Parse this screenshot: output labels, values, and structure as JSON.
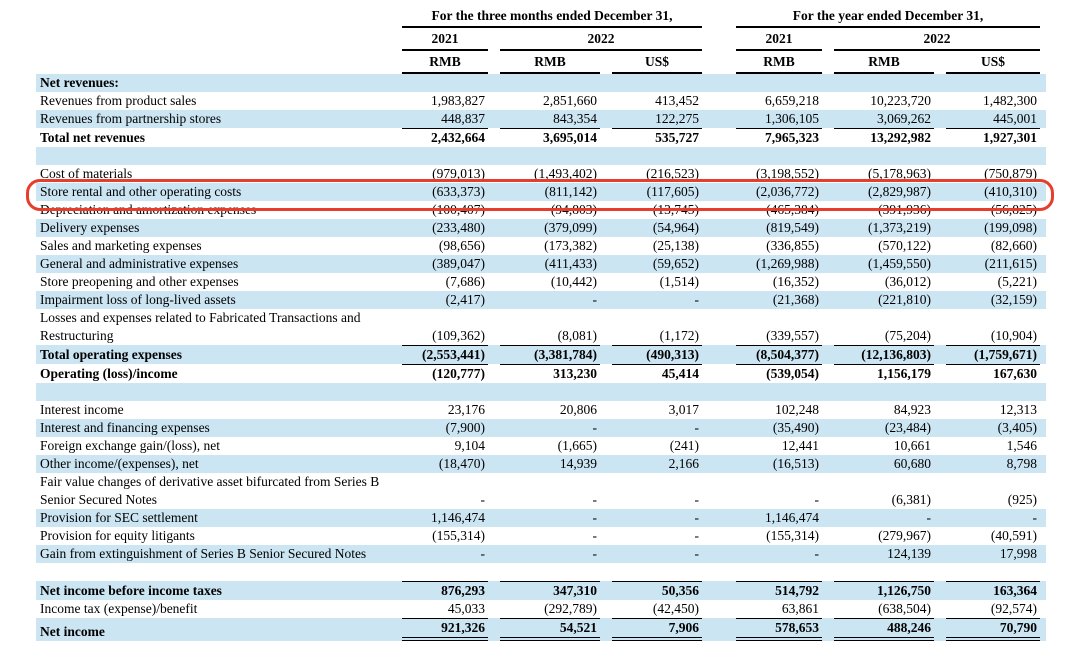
{
  "colors": {
    "stripe": "#cbe5f3",
    "highlight_ring": "#e53e2d",
    "rule": "#000000",
    "text": "#000000"
  },
  "header": {
    "groups": [
      {
        "title": "For the three months ended December 31,",
        "years": [
          {
            "label": "2021"
          },
          {
            "label": "2022"
          }
        ],
        "currencies": [
          "RMB",
          "RMB",
          "US$"
        ]
      },
      {
        "title": "For the year ended December 31,",
        "years": [
          {
            "label": "2021"
          },
          {
            "label": "2022"
          }
        ],
        "currencies": [
          "RMB",
          "RMB",
          "US$"
        ]
      }
    ]
  },
  "table": {
    "rows": [
      {
        "label": "Net revenues:",
        "bold": true,
        "values": [
          "",
          "",
          "",
          "",
          "",
          ""
        ]
      },
      {
        "label": "Revenues from product sales",
        "values": [
          "1,983,827",
          "2,851,660",
          "413,452",
          "6,659,218",
          "10,223,720",
          "1,482,300"
        ]
      },
      {
        "label": "Revenues from partnership stores",
        "values": [
          "448,837",
          "843,354",
          "122,275",
          "1,306,105",
          "3,069,262",
          "445,001"
        ]
      },
      {
        "label": "Total net revenues",
        "bold": true,
        "rule_top": true,
        "values": [
          "2,432,664",
          "3,695,014",
          "535,727",
          "7,965,323",
          "13,292,982",
          "1,927,301"
        ]
      },
      {
        "blank": true
      },
      {
        "label": "Cost of materials",
        "values": [
          "(979,013)",
          "(1,493,402)",
          "(216,523)",
          "(3,198,552)",
          "(5,178,963)",
          "(750,879)"
        ]
      },
      {
        "label": "Store rental and other operating costs",
        "highlight": true,
        "values": [
          "(633,373)",
          "(811,142)",
          "(117,605)",
          "(2,036,772)",
          "(2,829,987)",
          "(410,310)"
        ]
      },
      {
        "label": "Depreciation and amortization expenses",
        "values": [
          "(100,407)",
          "(94,803)",
          "(13,745)",
          "(465,384)",
          "(391,936)",
          "(56,825)"
        ]
      },
      {
        "label": "Delivery expenses",
        "values": [
          "(233,480)",
          "(379,099)",
          "(54,964)",
          "(819,549)",
          "(1,373,219)",
          "(199,098)"
        ]
      },
      {
        "label": "Sales and marketing expenses",
        "values": [
          "(98,656)",
          "(173,382)",
          "(25,138)",
          "(336,855)",
          "(570,122)",
          "(82,660)"
        ]
      },
      {
        "label": "General and administrative expenses",
        "values": [
          "(389,047)",
          "(411,433)",
          "(59,652)",
          "(1,269,988)",
          "(1,459,550)",
          "(211,615)"
        ]
      },
      {
        "label": "Store preopening and other expenses",
        "values": [
          "(7,686)",
          "(10,442)",
          "(1,514)",
          "(16,352)",
          "(36,012)",
          "(5,221)"
        ]
      },
      {
        "label": "Impairment loss of long-lived assets",
        "values": [
          "(2,417)",
          "-",
          "-",
          "(21,368)",
          "(221,810)",
          "(32,159)"
        ]
      },
      {
        "label": "Losses and expenses related to Fabricated Transactions and Restructuring",
        "values": [
          "(109,362)",
          "(8,081)",
          "(1,172)",
          "(339,557)",
          "(75,204)",
          "(10,904)"
        ]
      },
      {
        "label": "Total operating expenses",
        "bold": true,
        "rule_top": true,
        "values": [
          "(2,553,441)",
          "(3,381,784)",
          "(490,313)",
          "(8,504,377)",
          "(12,136,803)",
          "(1,759,671)"
        ]
      },
      {
        "label": "Operating (loss)/income",
        "bold": true,
        "rule_top": true,
        "values": [
          "(120,777)",
          "313,230",
          "45,414",
          "(539,054)",
          "1,156,179",
          "167,630"
        ]
      },
      {
        "blank": true
      },
      {
        "label": "Interest income",
        "values": [
          "23,176",
          "20,806",
          "3,017",
          "102,248",
          "84,923",
          "12,313"
        ]
      },
      {
        "label": "Interest and financing expenses",
        "values": [
          "(7,900)",
          "-",
          "-",
          "(35,490)",
          "(23,484)",
          "(3,405)"
        ]
      },
      {
        "label": "Foreign exchange gain/(loss), net",
        "values": [
          "9,104",
          "(1,665)",
          "(241)",
          "12,441",
          "10,661",
          "1,546"
        ]
      },
      {
        "label": "Other income/(expenses), net",
        "values": [
          "(18,470)",
          "14,939",
          "2,166",
          "(16,513)",
          "60,680",
          "8,798"
        ]
      },
      {
        "label": "Fair value changes of derivative asset bifurcated from Series B Senior Secured Notes",
        "values": [
          "-",
          "-",
          "-",
          "-",
          "(6,381)",
          "(925)"
        ]
      },
      {
        "label": "Provision for SEC settlement",
        "values": [
          "1,146,474",
          "-",
          "-",
          "1,146,474",
          "-",
          "-"
        ]
      },
      {
        "label": "Provision for equity litigants",
        "values": [
          "(155,314)",
          "-",
          "-",
          "(155,314)",
          "(279,967)",
          "(40,591)"
        ]
      },
      {
        "label": "Gain from extinguishment of Series B Senior Secured Notes",
        "values": [
          "-",
          "-",
          "-",
          "-",
          "124,139",
          "17,998"
        ]
      },
      {
        "blank": true
      },
      {
        "label": "Net income before income taxes",
        "bold": true,
        "rule_top": true,
        "values": [
          "876,293",
          "347,310",
          "50,356",
          "514,792",
          "1,126,750",
          "163,364"
        ]
      },
      {
        "label": "Income tax (expense)/benefit",
        "values": [
          "45,033",
          "(292,789)",
          "(42,450)",
          "63,861",
          "(638,504)",
          "(92,574)"
        ]
      },
      {
        "label": "Net income",
        "bold": true,
        "rule_top": true,
        "rule_double_bottom": true,
        "values": [
          "921,326",
          "54,521",
          "7,906",
          "578,653",
          "488,246",
          "70,790"
        ]
      }
    ]
  }
}
